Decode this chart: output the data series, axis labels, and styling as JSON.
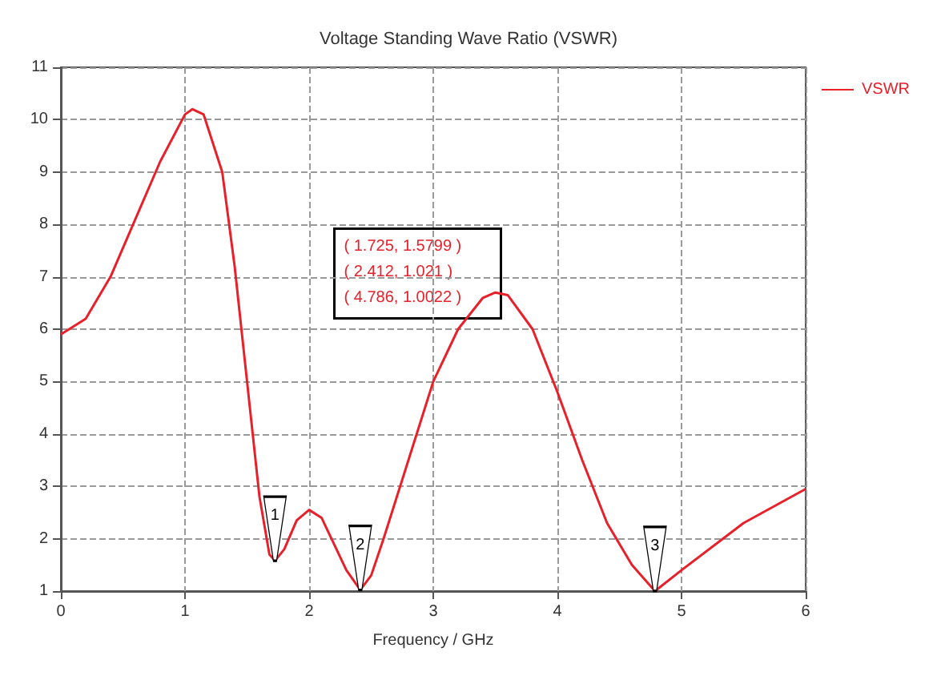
{
  "chart_data": {
    "type": "line",
    "title": "Voltage Standing Wave Ratio (VSWR)",
    "xlabel": "Frequency / GHz",
    "x": [
      0,
      0.2,
      0.4,
      0.6,
      0.8,
      1.0,
      1.06,
      1.15,
      1.3,
      1.4,
      1.5,
      1.6,
      1.68,
      1.725,
      1.8,
      1.9,
      2.0,
      2.1,
      2.2,
      2.3,
      2.412,
      2.5,
      2.6,
      2.8,
      3.0,
      3.2,
      3.4,
      3.5,
      3.6,
      3.8,
      4.0,
      4.2,
      4.4,
      4.6,
      4.786,
      5.0,
      5.5,
      6.0
    ],
    "series": [
      {
        "name": "VSWR",
        "color": "#e8202a",
        "values": [
          5.9,
          6.2,
          7.0,
          8.1,
          9.2,
          10.1,
          10.2,
          10.1,
          9.0,
          7.2,
          5.0,
          2.8,
          1.7,
          1.58,
          1.8,
          2.35,
          2.55,
          2.4,
          1.9,
          1.4,
          1.02,
          1.3,
          2.0,
          3.5,
          5.0,
          6.0,
          6.6,
          6.7,
          6.65,
          6.0,
          4.8,
          3.5,
          2.3,
          1.5,
          1.0,
          1.4,
          2.3,
          2.95
        ]
      }
    ],
    "annotations": [
      {
        "text": "1",
        "x": 1.725,
        "y": 1.5799
      },
      {
        "text": "2",
        "x": 2.412,
        "y": 1.021
      },
      {
        "text": "3",
        "x": 4.786,
        "y": 1.0022
      },
      "( 1.725, 1.5799 )",
      "( 2.412, 1.021 )",
      "( 4.786, 1.0022 )"
    ],
    "xlim": [
      0,
      6
    ],
    "xticks": [
      0,
      1,
      2,
      3,
      4,
      5,
      6
    ],
    "ylim": [
      1,
      11
    ],
    "yticks": [
      1,
      2,
      3,
      4,
      5,
      6,
      7,
      8,
      9,
      10,
      11
    ],
    "grid": true,
    "legend": "top right",
    "marker": "none",
    "line_style": "solid"
  }
}
